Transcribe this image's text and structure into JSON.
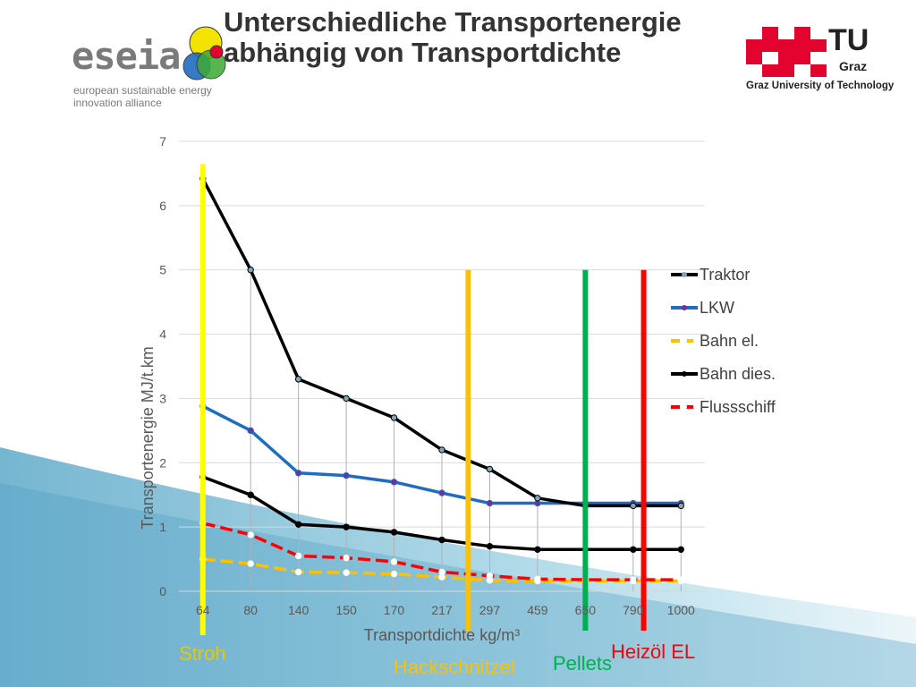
{
  "header": {
    "title": "Unterschiedliche Transportenergie\nabhängig von Transportdichte"
  },
  "logos": {
    "eseia_word": "eseia",
    "eseia_tagline": "european sustainable energy\ninnovation alliance",
    "tu_graz_tu": "TU",
    "tu_graz_graz": "Graz",
    "tu_graz_name": "Graz University of Technology",
    "tu_graz_color": "#e4032e"
  },
  "chart_data": {
    "type": "line",
    "categories": [
      "64",
      "80",
      "140",
      "150",
      "170",
      "217",
      "297",
      "459",
      "650",
      "790",
      "1000"
    ],
    "xlabel": "Transportdichte kg/m³",
    "ylabel": "Transportenergie MJ/t.km",
    "ylim": [
      0,
      7
    ],
    "yticks": [
      "0",
      "1",
      "2",
      "3",
      "4",
      "5",
      "6",
      "7"
    ],
    "grid": "horizontal",
    "legend_position": "right",
    "series": [
      {
        "name": "Traktor",
        "color": "#000000",
        "dash": "solid",
        "marker": "open",
        "values": [
          6.42,
          5.0,
          3.3,
          3.0,
          2.7,
          2.2,
          1.9,
          1.45,
          1.33,
          1.33,
          1.33
        ]
      },
      {
        "name": "LKW",
        "color": "#1f6cc1",
        "dash": "solid",
        "marker": "filled-purple",
        "values": [
          2.88,
          2.5,
          1.84,
          1.8,
          1.7,
          1.53,
          1.37,
          1.37,
          1.37,
          1.37,
          1.37
        ]
      },
      {
        "name": "Bahn el.",
        "color": "#ffc000",
        "dash": "dashed",
        "marker": "white",
        "values": [
          0.5,
          0.43,
          0.3,
          0.29,
          0.27,
          0.22,
          0.17,
          0.16,
          0.16,
          0.16,
          0.16
        ]
      },
      {
        "name": "Bahn dies.",
        "color": "#000000",
        "dash": "solid",
        "marker": "filled",
        "values": [
          1.78,
          1.5,
          1.04,
          1.0,
          0.92,
          0.8,
          0.7,
          0.65,
          0.65,
          0.65,
          0.65
        ]
      },
      {
        "name": "Flussschiff",
        "color": "#ff0000",
        "dash": "dashed",
        "marker": "white",
        "values": [
          1.06,
          0.88,
          0.55,
          0.52,
          0.46,
          0.3,
          0.24,
          0.19,
          0.18,
          0.18,
          0.18
        ]
      }
    ],
    "annotations": [
      {
        "label": "Stroh",
        "color": "#ffff00",
        "text_color": "#e6c800",
        "at_category": 0,
        "from_y": 6.65
      },
      {
        "label": "Hackschnitzel",
        "color": "#ffc000",
        "text_color": "#ffc000",
        "at_category": 5.55,
        "from_y": 5.0
      },
      {
        "label": "Pellets",
        "color": "#00b050",
        "text_color": "#00b050",
        "at_category": 8.0,
        "from_y": 5.0
      },
      {
        "label": "Heizöl EL",
        "color": "#ff0000",
        "text_color": "#ff0000",
        "at_category": 9.22,
        "from_y": 5.0
      }
    ]
  }
}
